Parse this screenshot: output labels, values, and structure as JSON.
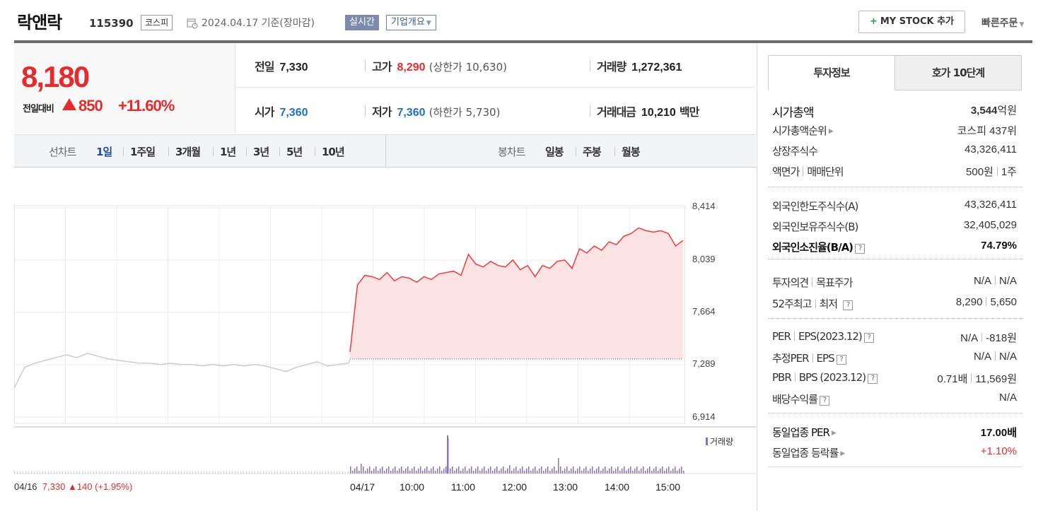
{
  "header": {
    "stock_name": "락앤락",
    "stock_code": "115390",
    "market": "코스피",
    "date": "2024.04.17",
    "basis": "기준(장마감)",
    "realtime_label": "실시간",
    "company_overview_label": "기업개요",
    "mystock_label": "MY STOCK 추가",
    "quick_order_label": "빠른주문"
  },
  "price": {
    "current": "8,180",
    "change_label": "전일대비",
    "change_value": "850",
    "change_pct": "+11.60%",
    "direction": "up"
  },
  "quotes": {
    "prev_close": {
      "label": "전일",
      "value": "7,330"
    },
    "high": {
      "label": "고가",
      "value": "8,290",
      "sub_label": "상한가",
      "sub_value": "10,630"
    },
    "volume": {
      "label": "거래량",
      "value": "1,272,361"
    },
    "open": {
      "label": "시가",
      "value": "7,360"
    },
    "low": {
      "label": "저가",
      "value": "7,360",
      "sub_label": "하한가",
      "sub_value": "5,730"
    },
    "turnover": {
      "label": "거래대금",
      "value": "10,210",
      "unit": "백만"
    }
  },
  "chart_toolbar": {
    "line_chart_label": "선차트",
    "periods": [
      "1일",
      "1주일",
      "3개월",
      "1년",
      "3년",
      "5년",
      "10년"
    ],
    "active_period": "1일",
    "candle_chart_label": "봉차트",
    "candle_periods": [
      "일봉",
      "주봉",
      "월봉"
    ]
  },
  "chart_data": {
    "type": "line",
    "title": "",
    "y_ticks": [
      "8,414",
      "8,039",
      "7,664",
      "7,289",
      "6,914"
    ],
    "ylim": [
      6914,
      8414
    ],
    "x_ticks": [
      "04/17",
      "10:00",
      "11:00",
      "12:00",
      "13:00",
      "14:00",
      "15:00"
    ],
    "prev_close": 7330,
    "series": [
      {
        "name": "04/16",
        "color": "#cccccc",
        "values": [
          7120,
          7270,
          7300,
          7320,
          7340,
          7360,
          7340,
          7370,
          7350,
          7330,
          7320,
          7310,
          7300,
          7300,
          7290,
          7300,
          7290,
          7290,
          7280,
          7290,
          7280,
          7290,
          7280,
          7290,
          7280,
          7260,
          7240,
          7270,
          7290,
          7310,
          7280,
          7290,
          7300
        ]
      },
      {
        "name": "04/17",
        "color": "#ee3b3b",
        "values": [
          7380,
          7860,
          7930,
          7920,
          7900,
          7950,
          7890,
          7920,
          7910,
          7880,
          7920,
          7900,
          7940,
          7950,
          7960,
          7930,
          8080,
          8010,
          7990,
          8030,
          8000,
          7990,
          8040,
          7970,
          8000,
          7920,
          8000,
          7980,
          8030,
          8040,
          7980,
          8120,
          8090,
          8140,
          8110,
          8170,
          8150,
          8210,
          8230,
          8270,
          8250,
          8240,
          8250,
          8230,
          8140,
          8180
        ]
      }
    ],
    "volume_label": "거래량",
    "prev_day_info": {
      "date": "04/16",
      "price": "7,330",
      "change": "140",
      "pct": "(+1.95%)"
    }
  },
  "invest_tabs": [
    "투자정보",
    "호가 10단계"
  ],
  "invest_info": {
    "market_cap": {
      "label": "시가총액",
      "value": "3,544",
      "unit": "억원"
    },
    "market_cap_rank": {
      "label": "시가총액순위",
      "value": "코스피 437위"
    },
    "shares": {
      "label": "상장주식수",
      "value": "43,326,411"
    },
    "par_value": {
      "label": "액면가",
      "label2": "매매단위",
      "value": "500원",
      "value2": "1주"
    },
    "foreign_limit": {
      "label": "외국인한도주식수(A)",
      "value": "43,326,411"
    },
    "foreign_hold": {
      "label": "외국인보유주식수(B)",
      "value": "32,405,029"
    },
    "foreign_ratio": {
      "label": "외국인소진율(B/A)",
      "value": "74.79%"
    },
    "opinion": {
      "label": "투자의견",
      "label2": "목표주가",
      "value": "N/A",
      "value2": "N/A"
    },
    "week52": {
      "label": "52주최고",
      "label2": "최저",
      "value": "8,290",
      "value2": "5,650"
    },
    "per": {
      "label": "PER",
      "label2": "EPS(2023.12)",
      "value": "N/A",
      "value2": "-818원"
    },
    "est_per": {
      "label": "추정PER",
      "label2": "EPS",
      "value": "N/A",
      "value2": "N/A"
    },
    "pbr": {
      "label": "PBR",
      "label2": "BPS (2023.12)",
      "value": "0.71배",
      "value2": "11,569원"
    },
    "dividend": {
      "label": "배당수익률",
      "value": "N/A"
    },
    "sector_per": {
      "label": "동일업종 PER",
      "value": "17.00배"
    },
    "sector_change": {
      "label": "동일업종 등락률",
      "value": "+1.10%"
    }
  }
}
